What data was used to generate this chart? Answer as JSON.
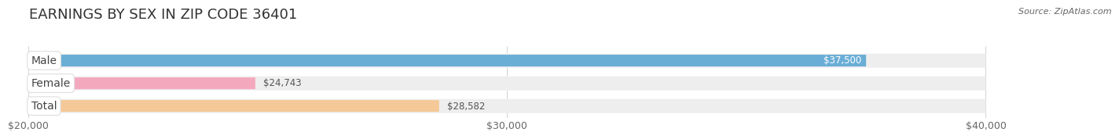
{
  "title": "EARNINGS BY SEX IN ZIP CODE 36401",
  "source": "Source: ZipAtlas.com",
  "categories": [
    "Male",
    "Female",
    "Total"
  ],
  "values": [
    37500,
    24743,
    28582
  ],
  "bar_colors": [
    "#6aaed6",
    "#f4a8be",
    "#f5c897"
  ],
  "value_labels": [
    "$37,500",
    "$24,743",
    "$28,582"
  ],
  "value_inside": [
    true,
    false,
    false
  ],
  "xmin": 20000,
  "xmax": 40000,
  "xticks": [
    20000,
    30000,
    40000
  ],
  "xtick_labels": [
    "$20,000",
    "$30,000",
    "$40,000"
  ],
  "background_color": "#ffffff",
  "bar_bg_color": "#eeeeee",
  "title_fontsize": 13,
  "tick_fontsize": 9,
  "value_fontsize": 8.5,
  "cat_fontsize": 10
}
